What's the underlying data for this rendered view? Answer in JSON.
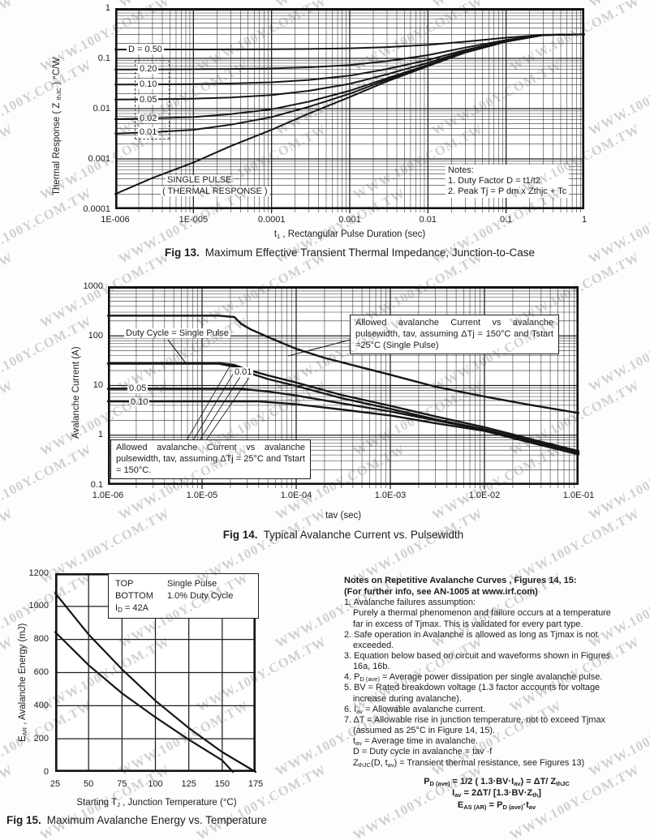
{
  "watermark": {
    "text": "WWW.100Y.COM.TW",
    "color": "#ababab"
  },
  "chart_data": [
    {
      "id": "fig13",
      "type": "line",
      "xscale": "log",
      "yscale": "log",
      "caption_fig": "Fig 13.",
      "caption_text": "Maximum Effective Transient Thermal Impedance, Junction-to-Case",
      "xlabel_pre": "t",
      "xlabel_sub": "1",
      "xlabel_post": " , Rectangular Pulse Duration (sec)",
      "ylabel_pre": "Thermal Response ( Z ",
      "ylabel_sub": "thJC",
      "ylabel_post": " ) °C/W",
      "xlim": [
        1e-06,
        1
      ],
      "ylim": [
        0.0001,
        1
      ],
      "xticks": [
        {
          "v": 1e-06,
          "l": "1E-006"
        },
        {
          "v": 1e-05,
          "l": "1E-005"
        },
        {
          "v": 0.0001,
          "l": "0.0001"
        },
        {
          "v": 0.001,
          "l": "0.001"
        },
        {
          "v": 0.01,
          "l": "0.01"
        },
        {
          "v": 0.1,
          "l": "0.1"
        },
        {
          "v": 1,
          "l": "1"
        }
      ],
      "yticks": [
        {
          "v": 1,
          "l": "1"
        },
        {
          "v": 0.1,
          "l": "0.1"
        },
        {
          "v": 0.01,
          "l": "0.01"
        },
        {
          "v": 0.001,
          "l": "0.001"
        },
        {
          "v": 0.0001,
          "l": "0.0001"
        }
      ],
      "curve_labels": [
        "D = 0.50",
        "0.20",
        "0.10",
        "0.05",
        "0.02",
        "0.01"
      ],
      "inplot_text_1": "SINGLE PULSE",
      "inplot_text_2": "( THERMAL RESPONSE )",
      "notes": [
        "Notes:",
        "1. Duty Factor D = t1/t2",
        "2. Peak Tj = P dm x Zthjc + Tc"
      ],
      "t": [
        1e-06,
        3e-06,
        1e-05,
        3e-05,
        0.0001,
        0.0003,
        0.001,
        0.003,
        0.01,
        0.03,
        0.1,
        0.3,
        1
      ],
      "series": [
        {
          "name": "D = 0.50",
          "z": [
            0.1501,
            0.1502,
            0.1504,
            0.1509,
            0.1519,
            0.154,
            0.1585,
            0.1675,
            0.185,
            0.215,
            0.2575,
            0.295,
            0.3
          ]
        },
        {
          "name": "D = 0.20",
          "z": [
            0.0602,
            0.0603,
            0.0607,
            0.0614,
            0.063,
            0.0664,
            0.0736,
            0.088,
            0.116,
            0.164,
            0.232,
            0.292,
            0.3
          ]
        },
        {
          "name": "D = 0.10",
          "z": [
            0.0302,
            0.0304,
            0.0308,
            0.0316,
            0.0334,
            0.0372,
            0.0453,
            0.0615,
            0.093,
            0.147,
            0.2235,
            0.291,
            0.3
          ]
        },
        {
          "name": "D = 0.05",
          "z": [
            0.0152,
            0.0154,
            0.0158,
            0.0167,
            0.0186,
            0.0226,
            0.0312,
            0.0483,
            0.0815,
            0.1385,
            0.219,
            0.2905,
            0.3
          ]
        },
        {
          "name": "D = 0.02",
          "z": [
            0.0062,
            0.0064,
            0.0068,
            0.0078,
            0.0097,
            0.0138,
            0.0227,
            0.0403,
            0.0746,
            0.1334,
            0.2167,
            0.29,
            0.3
          ]
        },
        {
          "name": "D = 0.01",
          "z": [
            0.0032,
            0.0034,
            0.0038,
            0.0048,
            0.0068,
            0.0109,
            0.0198,
            0.0377,
            0.0723,
            0.1317,
            0.2159,
            0.29,
            0.3
          ]
        },
        {
          "name": "Single Pulse",
          "z": [
            0.0002,
            0.00042,
            0.00085,
            0.0018,
            0.0038,
            0.008,
            0.017,
            0.035,
            0.07,
            0.13,
            0.215,
            0.29,
            0.3
          ]
        }
      ]
    },
    {
      "id": "fig14",
      "type": "line",
      "xscale": "log",
      "yscale": "log",
      "caption_fig": "Fig 14.",
      "caption_text": "Typical Avalanche Current vs. Pulsewidth",
      "xlabel": "tav (sec)",
      "ylabel": "Avalanche Current (A)",
      "xlim": [
        1e-06,
        0.1
      ],
      "ylim": [
        0.1,
        1000
      ],
      "xticks": [
        {
          "v": 1e-06,
          "l": "1.0E-06"
        },
        {
          "v": 1e-05,
          "l": "1.0E-05"
        },
        {
          "v": 0.0001,
          "l": "1.0E-04"
        },
        {
          "v": 0.001,
          "l": "1.0E-03"
        },
        {
          "v": 0.01,
          "l": "1.0E-02"
        },
        {
          "v": 0.1,
          "l": "1.0E-01"
        }
      ],
      "yticks": [
        {
          "v": 1000,
          "l": "1000"
        },
        {
          "v": 100,
          "l": "100"
        },
        {
          "v": 10,
          "l": "10"
        },
        {
          "v": 1,
          "l": "1"
        },
        {
          "v": 0.1,
          "l": "0.1"
        }
      ],
      "curve_labels": [
        "Duty Cycle = Single Pulse",
        "0.01",
        "0.05",
        "0.10"
      ],
      "box_hot": "Allowed avalanche Current vs avalanche pulsewidth, tav, assuming ΔTj = 150°C and Tstart =25°C (Single Pulse)",
      "box_cold": "Allowed avalanche Current vs avalanche pulsewidth, tav, assuming ΔTj = 25°C and Tstart = 150°C.",
      "series": [
        {
          "name": "Single Pulse, dTj=150C",
          "pts": [
            [
              1e-06,
              255
            ],
            [
              1.5e-05,
              255
            ],
            [
              2.2e-05,
              240
            ],
            [
              2.6e-05,
              175
            ],
            [
              3.3e-05,
              135
            ],
            [
              5e-05,
              95
            ],
            [
              0.0001,
              55
            ],
            [
              0.0002,
              36
            ],
            [
              0.0005,
              23
            ],
            [
              0.001,
              16.5
            ],
            [
              0.003,
              9.5
            ],
            [
              0.01,
              6
            ],
            [
              0.03,
              4.1
            ],
            [
              0.1,
              2.8
            ]
          ]
        },
        {
          "name": "Single Pulse, dTj=25C",
          "pts": [
            [
              1e-06,
              28
            ],
            [
              1.6e-05,
              28
            ],
            [
              2.2e-05,
              26
            ],
            [
              3e-05,
              21
            ],
            [
              5e-05,
              16
            ],
            [
              0.0001,
              11.5
            ],
            [
              0.0003,
              6.5
            ],
            [
              0.001,
              3.9
            ],
            [
              0.003,
              2.4
            ],
            [
              0.01,
              1.45
            ],
            [
              0.03,
              0.85
            ],
            [
              0.1,
              0.48
            ]
          ]
        },
        {
          "name": "D = 0.01",
          "pts": [
            [
              1e-06,
              27.5
            ],
            [
              1.5e-05,
              27.5
            ],
            [
              2.2e-05,
              24
            ],
            [
              3e-05,
              18.5
            ],
            [
              5e-05,
              13.5
            ],
            [
              0.0001,
              9.8
            ],
            [
              0.0003,
              5.6
            ],
            [
              0.001,
              3.4
            ],
            [
              0.003,
              2.1
            ],
            [
              0.01,
              1.32
            ],
            [
              0.03,
              0.78
            ],
            [
              0.1,
              0.44
            ]
          ]
        },
        {
          "name": "D = 0.05",
          "pts": [
            [
              1e-06,
              8.6
            ],
            [
              2.5e-05,
              8.6
            ],
            [
              5e-05,
              7.6
            ],
            [
              0.0001,
              6.3
            ],
            [
              0.0003,
              4.4
            ],
            [
              0.001,
              3.0
            ],
            [
              0.003,
              2.0
            ],
            [
              0.01,
              1.28
            ],
            [
              0.03,
              0.76
            ],
            [
              0.1,
              0.43
            ]
          ]
        },
        {
          "name": "D = 0.10",
          "pts": [
            [
              1e-06,
              4.8
            ],
            [
              4e-05,
              4.8
            ],
            [
              0.0001,
              4.2
            ],
            [
              0.0003,
              3.3
            ],
            [
              0.001,
              2.5
            ],
            [
              0.003,
              1.75
            ],
            [
              0.01,
              1.22
            ],
            [
              0.03,
              0.72
            ],
            [
              0.1,
              0.41
            ]
          ]
        }
      ]
    },
    {
      "id": "fig15",
      "type": "line",
      "xscale": "linear",
      "yscale": "linear",
      "caption_fig": "Fig 15.",
      "caption_text": "Maximum Avalanche Energy vs. Temperature",
      "xlabel_pre": "Starting T",
      "xlabel_sub": "J",
      "xlabel_post": " , Junction Temperature (°C)",
      "ylabel_pre": "E",
      "ylabel_sub": "AR",
      "ylabel_post": " , Avalanche Energy (mJ)",
      "xlim": [
        25,
        175
      ],
      "ylim": [
        0,
        1200
      ],
      "xticks": [
        25,
        50,
        75,
        100,
        125,
        150,
        175
      ],
      "yticks": [
        0,
        200,
        400,
        600,
        800,
        1000,
        1200
      ],
      "legend": {
        "rows": [
          [
            "TOP",
            "Single Pulse"
          ],
          [
            "BOTTOM",
            "1.0% Duty Cycle"
          ]
        ],
        "id_pre": "I",
        "id_sub": "D",
        "id_post": " = 42A"
      },
      "series": [
        {
          "name": "Single Pulse (TOP)",
          "pts": [
            [
              25,
              1080
            ],
            [
              50,
              830
            ],
            [
              75,
              620
            ],
            [
              100,
              430
            ],
            [
              125,
              265
            ],
            [
              150,
              120
            ],
            [
              175,
              0
            ]
          ]
        },
        {
          "name": "1.0% Duty Cycle (BOTTOM)",
          "pts": [
            [
              25,
              845
            ],
            [
              50,
              645
            ],
            [
              75,
              475
            ],
            [
              100,
              330
            ],
            [
              125,
              195
            ],
            [
              150,
              70
            ],
            [
              158,
              0
            ]
          ]
        }
      ]
    }
  ],
  "notes": {
    "title1": "Notes on Repetitive Avalanche Curves , Figures 14, 15:",
    "title2": "(For further info, see AN-1005 at www.irf.com)",
    "items": [
      {
        "ind": 0,
        "seg": [
          [
            "t",
            "1. Avalanche failures assumption:"
          ]
        ]
      },
      {
        "ind": 1,
        "seg": [
          [
            "t",
            "Purely a thermal phenomenon and failure occurs at a temperature"
          ]
        ]
      },
      {
        "ind": 1,
        "seg": [
          [
            "t",
            "far in excess of Tjmax. This is validated for every part type."
          ]
        ]
      },
      {
        "ind": 0,
        "seg": [
          [
            "t",
            "2. Safe operation in Avalanche is allowed as long as Tjmax is not"
          ]
        ]
      },
      {
        "ind": 1,
        "seg": [
          [
            "t",
            "exceeded."
          ]
        ]
      },
      {
        "ind": 0,
        "seg": [
          [
            "t",
            "3. Equation below based on circuit and waveforms shown in Figures"
          ]
        ]
      },
      {
        "ind": 1,
        "seg": [
          [
            "t",
            "16a, 16b."
          ]
        ]
      },
      {
        "ind": 0,
        "seg": [
          [
            "t",
            "4. P"
          ],
          [
            "s",
            "D (ave)"
          ],
          [
            "t",
            " = Average power dissipation per single avalanche pulse."
          ]
        ]
      },
      {
        "ind": 0,
        "seg": [
          [
            "t",
            "5. BV = Rated breakdown voltage (1.3 factor accounts for voltage"
          ]
        ]
      },
      {
        "ind": 1,
        "seg": [
          [
            "t",
            "increase during avalanche)."
          ]
        ]
      },
      {
        "ind": 0,
        "seg": [
          [
            "t",
            "6. I"
          ],
          [
            "s",
            "av"
          ],
          [
            "t",
            " = Allowable avalanche current."
          ]
        ]
      },
      {
        "ind": 0,
        "seg": [
          [
            "t",
            "7. ΔT = Allowable rise in junction temperature, not to exceed Tjmax"
          ]
        ]
      },
      {
        "ind": 1,
        "seg": [
          [
            "t",
            "(assumed as 25°C in Figure 14, 15)."
          ]
        ]
      },
      {
        "ind": 1,
        "seg": [
          [
            "t",
            "t"
          ],
          [
            "s",
            "av"
          ],
          [
            "t",
            " = Average time in avalanche."
          ]
        ]
      },
      {
        "ind": 1,
        "seg": [
          [
            "t",
            "D = Duty cycle in avalanche =  tav ·f"
          ]
        ]
      },
      {
        "ind": 1,
        "seg": [
          [
            "t",
            "Z"
          ],
          [
            "s",
            "thJC"
          ],
          [
            "t",
            "(D, t"
          ],
          [
            "s",
            "av"
          ],
          [
            "t",
            ") = Transient thermal resistance, see Figures 13)"
          ]
        ]
      }
    ],
    "equations": [
      [
        [
          "t",
          "P"
        ],
        [
          "s",
          "D (ave)"
        ],
        [
          "t",
          " = 1/2 ( 1.3·BV·I"
        ],
        [
          "s",
          "av"
        ],
        [
          "t",
          ") = ΔT/ Z"
        ],
        [
          "s",
          "thJC"
        ]
      ],
      [
        [
          "t",
          "I"
        ],
        [
          "s",
          "av"
        ],
        [
          "t",
          " = 2ΔT/ [1.3·BV·Z"
        ],
        [
          "s",
          "th"
        ],
        [
          "t",
          "]"
        ]
      ],
      [
        [
          "t",
          "E"
        ],
        [
          "s",
          "AS (AR)"
        ],
        [
          "t",
          " = P"
        ],
        [
          "s",
          "D (ave)"
        ],
        [
          "t",
          "·t"
        ],
        [
          "s",
          "av"
        ]
      ]
    ]
  }
}
